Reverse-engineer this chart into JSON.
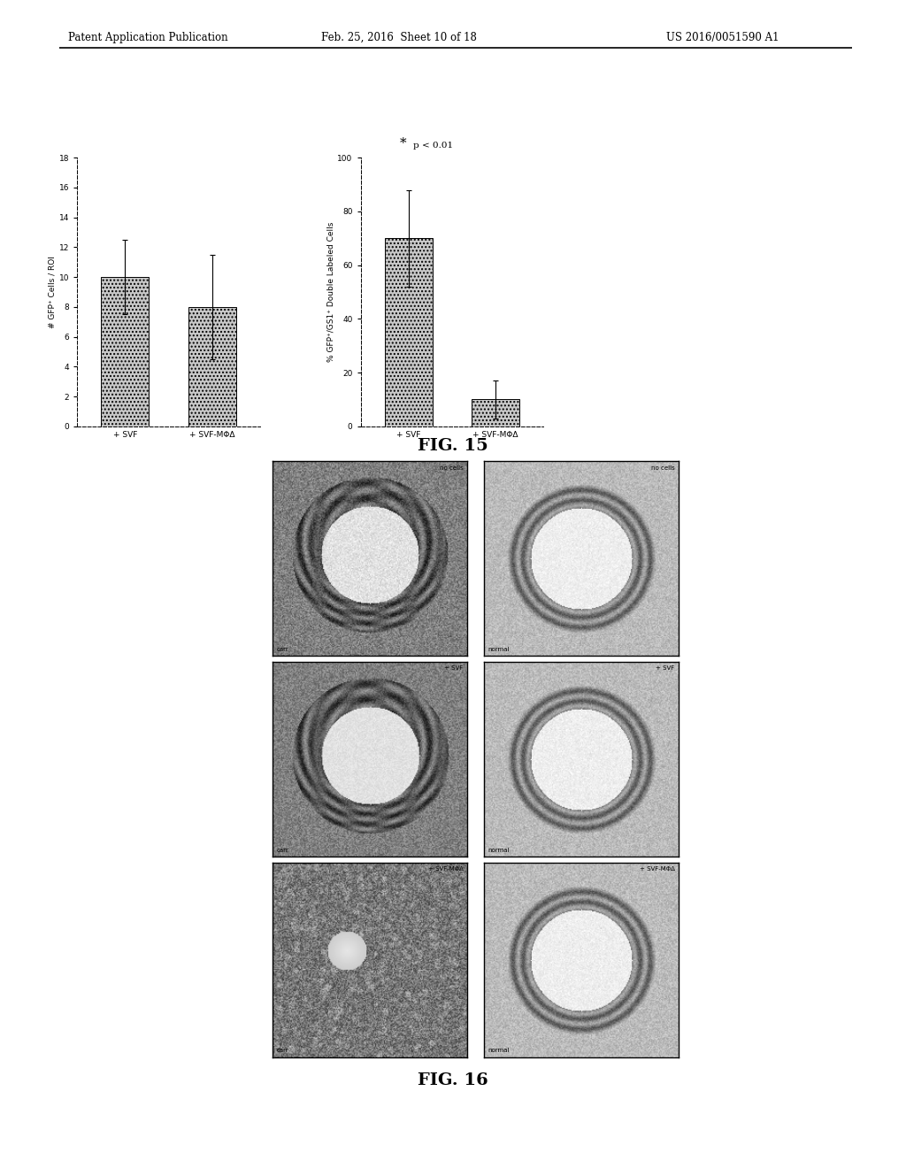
{
  "header_left": "Patent Application Publication",
  "header_mid": "Feb. 25, 2016  Sheet 10 of 18",
  "header_right": "US 2016/0051590 A1",
  "fig15_label": "FIG. 15",
  "fig16_label": "FIG. 16",
  "chart1": {
    "bars": [
      10.0,
      8.0
    ],
    "errors": [
      2.5,
      3.5
    ],
    "xlabels": [
      "+ SVF",
      "+ SVF-MΦΔ"
    ],
    "ylabel": "# GFP⁺ Cells / ROI",
    "ylim": [
      0,
      18
    ],
    "yticks": [
      0,
      2,
      4,
      6,
      8,
      10,
      12,
      14,
      16,
      18
    ]
  },
  "chart2": {
    "bars": [
      70.0,
      10.0
    ],
    "errors": [
      18.0,
      7.0
    ],
    "xlabels": [
      "+ SVF",
      "+ SVF-MΦΔ"
    ],
    "ylabel": "% GFP⁺/GS1⁺ Double Labeled Cells",
    "ylim": [
      0,
      100
    ],
    "yticks": [
      0,
      20,
      40,
      60,
      80,
      100
    ],
    "annotation_star": "*",
    "annotation_text": "p < 0.01"
  },
  "bar_color": "#c8c8c8",
  "bar_hatch": "....",
  "background_color": "#ffffff",
  "text_color": "#000000",
  "micro_row_labels": [
    "no cells",
    "+ SVF",
    "+ SVF-MΦΔ"
  ],
  "micro_col_labels_bottom_left": [
    "carr",
    "carr",
    "carr"
  ],
  "micro_col_labels_bottom_right": [
    "normal",
    "normal",
    "normal"
  ]
}
